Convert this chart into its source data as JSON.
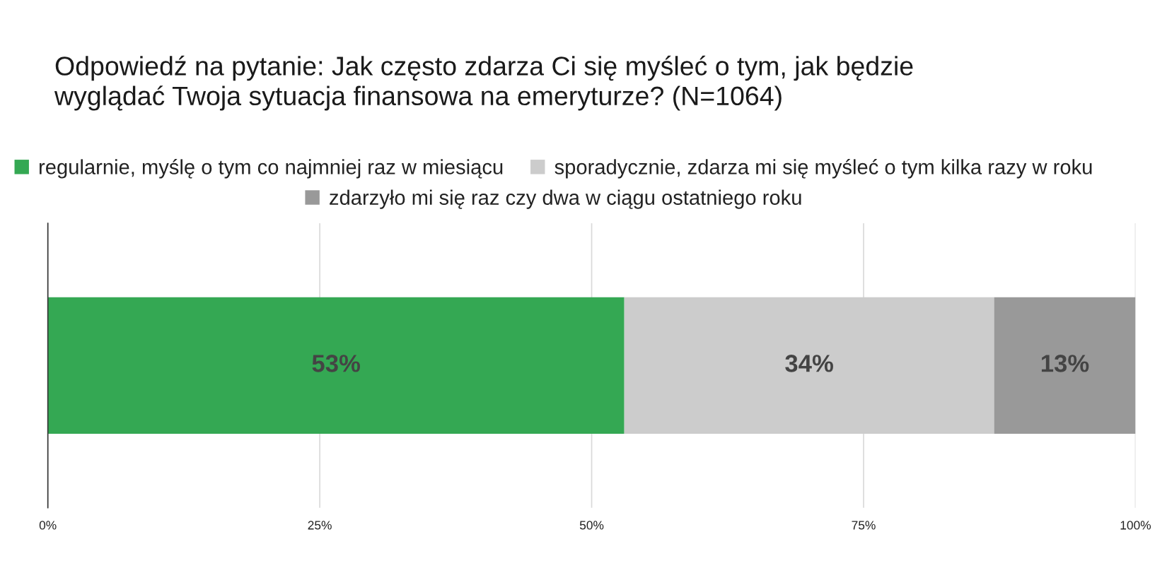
{
  "chart_data": {
    "type": "bar",
    "orientation": "horizontal",
    "stacked": true,
    "title": "Odpowiedź na pytanie: Jak często zdarza Ci się myśleć o tym, jak będzie wyglądać Twoja sytuacja finansowa na emeryturze? (N=1064)",
    "categories": [
      null
    ],
    "series": [
      {
        "name": "regularnie, myślę o tym co najmniej raz w miesiącu",
        "color": "#34a853",
        "values": [
          53
        ],
        "value_labels": [
          "53%"
        ]
      },
      {
        "name": "sporadycznie, zdarza mi się myśleć o tym kilka razy w roku",
        "color": "#cccccc",
        "values": [
          34
        ],
        "value_labels": [
          "34%"
        ]
      },
      {
        "name": "zdarzyło mi się raz czy dwa w ciągu ostatniego roku",
        "color": "#999999",
        "values": [
          13
        ],
        "value_labels": [
          "13%"
        ]
      }
    ],
    "xlim": [
      0,
      100
    ],
    "xticks": [
      {
        "value": 0,
        "label": "0%"
      },
      {
        "value": 25,
        "label": "25%"
      },
      {
        "value": 50,
        "label": "50%"
      },
      {
        "value": 75,
        "label": "75%"
      },
      {
        "value": 100,
        "label": "100%"
      }
    ],
    "grid": "x",
    "legend": "top",
    "tick_labels": "x"
  }
}
